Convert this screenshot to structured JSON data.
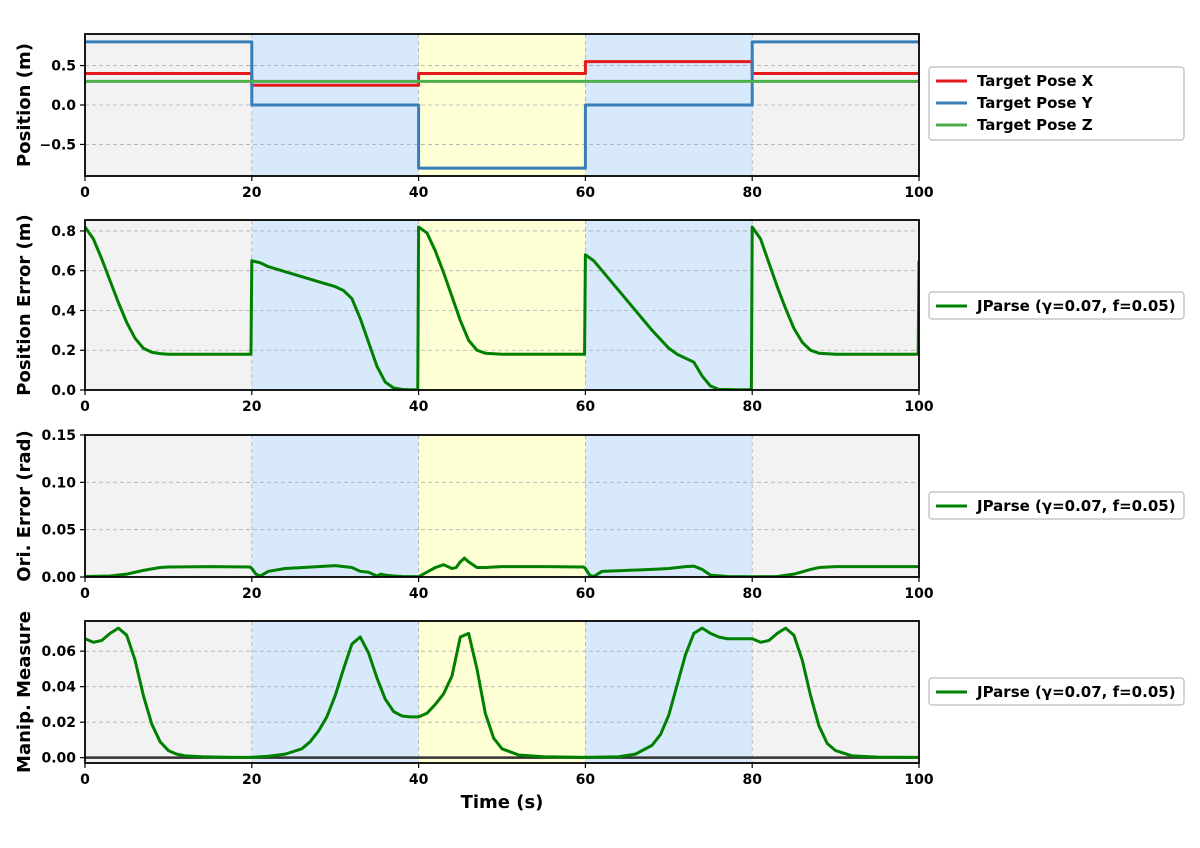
{
  "colors": {
    "red": "#e41a1c",
    "blue": "#377eb8",
    "green_light": "#4daf4a",
    "green_dark": "#008000",
    "bg_gray": "#f2f2f2",
    "bg_blue": "#d7e9fa",
    "bg_yellow": "#ffffd6",
    "grid": "#b0b0b0",
    "zero_line": "#333333"
  },
  "chart_data": [
    {
      "type": "line",
      "ylabel": "Position (m)",
      "xlim": [
        0,
        100
      ],
      "ylim": [
        -0.9,
        0.9
      ],
      "xticks": [
        "0",
        "20",
        "40",
        "60",
        "80",
        "100"
      ],
      "yticks": [
        {
          "v": -0.5,
          "label": "−0.5"
        },
        {
          "v": 0.0,
          "label": "0.0"
        },
        {
          "v": 0.5,
          "label": "0.5"
        }
      ],
      "grid": true,
      "legend_placement": "right",
      "background_bands": [
        {
          "x0": 0,
          "x1": 20,
          "color": "gray"
        },
        {
          "x0": 20,
          "x1": 40,
          "color": "blue"
        },
        {
          "x0": 40,
          "x1": 60,
          "color": "yellow"
        },
        {
          "x0": 60,
          "x1": 80,
          "color": "blue"
        },
        {
          "x0": 80,
          "x1": 100,
          "color": "gray"
        }
      ],
      "series": [
        {
          "name": "Target Pose X",
          "color": "red",
          "step": true,
          "x": [
            0,
            20,
            20,
            40,
            40,
            60,
            60,
            80,
            80,
            100
          ],
          "y": [
            0.4,
            0.4,
            0.25,
            0.25,
            0.4,
            0.4,
            0.55,
            0.55,
            0.4,
            0.4
          ]
        },
        {
          "name": "Target Pose Y",
          "color": "blue",
          "step": true,
          "x": [
            0,
            20,
            20,
            40,
            40,
            60,
            60,
            80,
            80,
            100
          ],
          "y": [
            0.8,
            0.8,
            0.0,
            0.0,
            -0.8,
            -0.8,
            0.0,
            0.0,
            0.8,
            0.8
          ]
        },
        {
          "name": "Target Pose Z",
          "color": "green_light",
          "step": true,
          "x": [
            0,
            100
          ],
          "y": [
            0.3,
            0.3
          ]
        }
      ]
    },
    {
      "type": "line",
      "ylabel": "Position Error (m)",
      "xlim": [
        0,
        100
      ],
      "ylim": [
        0,
        0.855
      ],
      "xticks": [
        "0",
        "20",
        "40",
        "60",
        "80",
        "100"
      ],
      "yticks": [
        {
          "v": 0.0,
          "label": "0.0"
        },
        {
          "v": 0.2,
          "label": "0.2"
        },
        {
          "v": 0.4,
          "label": "0.4"
        },
        {
          "v": 0.6,
          "label": "0.6"
        },
        {
          "v": 0.8,
          "label": "0.8"
        }
      ],
      "grid": true,
      "legend_placement": "right",
      "background_bands": [
        {
          "x0": 0,
          "x1": 20,
          "color": "gray"
        },
        {
          "x0": 20,
          "x1": 40,
          "color": "blue"
        },
        {
          "x0": 40,
          "x1": 60,
          "color": "yellow"
        },
        {
          "x0": 60,
          "x1": 80,
          "color": "blue"
        },
        {
          "x0": 80,
          "x1": 100,
          "color": "gray"
        }
      ],
      "series": [
        {
          "name": "JParse (γ=0.07, f=0.05)",
          "color": "green_dark",
          "x": [
            0,
            1,
            2,
            3,
            4,
            5,
            6,
            7,
            8,
            9,
            10,
            12,
            15,
            18,
            19.9,
            20,
            21,
            22,
            24,
            26,
            28,
            30,
            31,
            32,
            33,
            34,
            35,
            36,
            37,
            38,
            39,
            39.9,
            40,
            41,
            42,
            43,
            44,
            45,
            46,
            47,
            48,
            50,
            55,
            59.9,
            60,
            61,
            62,
            64,
            66,
            68,
            70,
            71,
            72,
            73,
            74,
            75,
            76,
            78,
            79.9,
            80,
            81,
            82,
            83,
            84,
            85,
            86,
            87,
            88,
            90,
            95,
            99.9,
            100
          ],
          "y": [
            0.82,
            0.76,
            0.66,
            0.55,
            0.44,
            0.34,
            0.26,
            0.21,
            0.19,
            0.183,
            0.18,
            0.18,
            0.18,
            0.18,
            0.18,
            0.65,
            0.64,
            0.62,
            0.595,
            0.57,
            0.545,
            0.52,
            0.5,
            0.46,
            0.36,
            0.24,
            0.12,
            0.04,
            0.01,
            0.003,
            0.001,
            0.001,
            0.82,
            0.79,
            0.7,
            0.59,
            0.47,
            0.35,
            0.25,
            0.2,
            0.185,
            0.18,
            0.18,
            0.18,
            0.68,
            0.65,
            0.6,
            0.5,
            0.4,
            0.3,
            0.21,
            0.18,
            0.16,
            0.14,
            0.07,
            0.02,
            0.003,
            0.001,
            0.001,
            0.82,
            0.76,
            0.64,
            0.52,
            0.41,
            0.31,
            0.24,
            0.2,
            0.185,
            0.18,
            0.18,
            0.18,
            0.65
          ]
        }
      ]
    },
    {
      "type": "line",
      "ylabel": "Ori. Error (rad)",
      "xlim": [
        0,
        100
      ],
      "ylim": [
        0,
        0.15
      ],
      "xticks": [
        "0",
        "20",
        "40",
        "60",
        "80",
        "100"
      ],
      "yticks": [
        {
          "v": 0.0,
          "label": "0.00"
        },
        {
          "v": 0.05,
          "label": "0.05"
        },
        {
          "v": 0.1,
          "label": "0.10"
        },
        {
          "v": 0.15,
          "label": "0.15"
        }
      ],
      "grid": true,
      "legend_placement": "right",
      "background_bands": [
        {
          "x0": 0,
          "x1": 20,
          "color": "gray"
        },
        {
          "x0": 20,
          "x1": 40,
          "color": "blue"
        },
        {
          "x0": 40,
          "x1": 60,
          "color": "yellow"
        },
        {
          "x0": 60,
          "x1": 80,
          "color": "blue"
        },
        {
          "x0": 80,
          "x1": 100,
          "color": "gray"
        }
      ],
      "series": [
        {
          "name": "JParse (γ=0.07, f=0.05)",
          "color": "green_dark",
          "x": [
            0,
            3,
            5,
            7,
            9,
            10,
            15,
            19.8,
            20,
            20.5,
            21,
            22,
            24,
            28,
            30,
            32,
            33,
            34,
            35,
            35.5,
            36,
            37,
            38,
            40,
            42,
            43,
            44,
            44.5,
            45,
            45.5,
            46,
            47,
            48,
            50,
            55,
            59.8,
            60,
            60.5,
            61,
            62,
            65,
            68,
            70,
            72,
            73,
            74,
            75,
            77,
            80,
            83,
            85,
            87,
            88,
            90,
            95,
            100
          ],
          "y": [
            0.0005,
            0.001,
            0.003,
            0.007,
            0.01,
            0.0105,
            0.011,
            0.0105,
            0.009,
            0.003,
            0.001,
            0.006,
            0.009,
            0.011,
            0.012,
            0.01,
            0.006,
            0.005,
            0.001,
            0.003,
            0.002,
            0.001,
            0.0005,
            0.0003,
            0.01,
            0.013,
            0.009,
            0.01,
            0.016,
            0.02,
            0.016,
            0.01,
            0.01,
            0.011,
            0.011,
            0.0105,
            0.009,
            0.002,
            0.0005,
            0.006,
            0.007,
            0.008,
            0.009,
            0.011,
            0.0115,
            0.008,
            0.002,
            0.0005,
            0.0003,
            0.0005,
            0.003,
            0.008,
            0.01,
            0.011,
            0.011,
            0.011
          ]
        }
      ]
    },
    {
      "type": "line",
      "ylabel": "Manip. Measure",
      "xlabel": "Time (s)",
      "xlim": [
        0,
        100
      ],
      "ylim": [
        -0.003,
        0.077
      ],
      "xticks": [
        "0",
        "20",
        "40",
        "60",
        "80",
        "100"
      ],
      "yticks": [
        {
          "v": 0.0,
          "label": "0.00"
        },
        {
          "v": 0.02,
          "label": "0.02"
        },
        {
          "v": 0.04,
          "label": "0.04"
        },
        {
          "v": 0.06,
          "label": "0.06"
        }
      ],
      "grid": true,
      "legend_placement": "right",
      "background_bands": [
        {
          "x0": 0,
          "x1": 20,
          "color": "gray"
        },
        {
          "x0": 20,
          "x1": 40,
          "color": "blue"
        },
        {
          "x0": 40,
          "x1": 60,
          "color": "yellow"
        },
        {
          "x0": 60,
          "x1": 80,
          "color": "blue"
        },
        {
          "x0": 80,
          "x1": 100,
          "color": "gray"
        }
      ],
      "zero_line": 0,
      "series": [
        {
          "name": "JParse (γ=0.07, f=0.05)",
          "color": "green_dark",
          "x": [
            0,
            1,
            2,
            3,
            4,
            5,
            6,
            7,
            8,
            9,
            10,
            11,
            12,
            14,
            16,
            18,
            20,
            22,
            24,
            26,
            27,
            28,
            29,
            30,
            31,
            32,
            33,
            34,
            35,
            36,
            37,
            38,
            39,
            40,
            41,
            42,
            43,
            44,
            45,
            46,
            47,
            48,
            49,
            50,
            52,
            55,
            60,
            64,
            66,
            68,
            69,
            70,
            71,
            72,
            73,
            74,
            75,
            76,
            77,
            78,
            79,
            80,
            81,
            82,
            83,
            84,
            85,
            86,
            87,
            88,
            89,
            90,
            92,
            95,
            100
          ],
          "y": [
            0.067,
            0.065,
            0.066,
            0.07,
            0.073,
            0.069,
            0.055,
            0.035,
            0.019,
            0.009,
            0.004,
            0.002,
            0.001,
            0.0005,
            0.0003,
            0.0002,
            0.0002,
            0.0008,
            0.002,
            0.005,
            0.009,
            0.015,
            0.023,
            0.035,
            0.05,
            0.064,
            0.068,
            0.059,
            0.045,
            0.033,
            0.026,
            0.0235,
            0.023,
            0.023,
            0.025,
            0.03,
            0.036,
            0.046,
            0.068,
            0.07,
            0.05,
            0.025,
            0.011,
            0.005,
            0.0015,
            0.0005,
            0.0002,
            0.0005,
            0.002,
            0.007,
            0.013,
            0.024,
            0.041,
            0.058,
            0.07,
            0.073,
            0.07,
            0.068,
            0.067,
            0.067,
            0.067,
            0.067,
            0.065,
            0.066,
            0.07,
            0.073,
            0.069,
            0.055,
            0.035,
            0.018,
            0.008,
            0.004,
            0.001,
            0.0003,
            0.0002
          ]
        }
      ]
    }
  ]
}
